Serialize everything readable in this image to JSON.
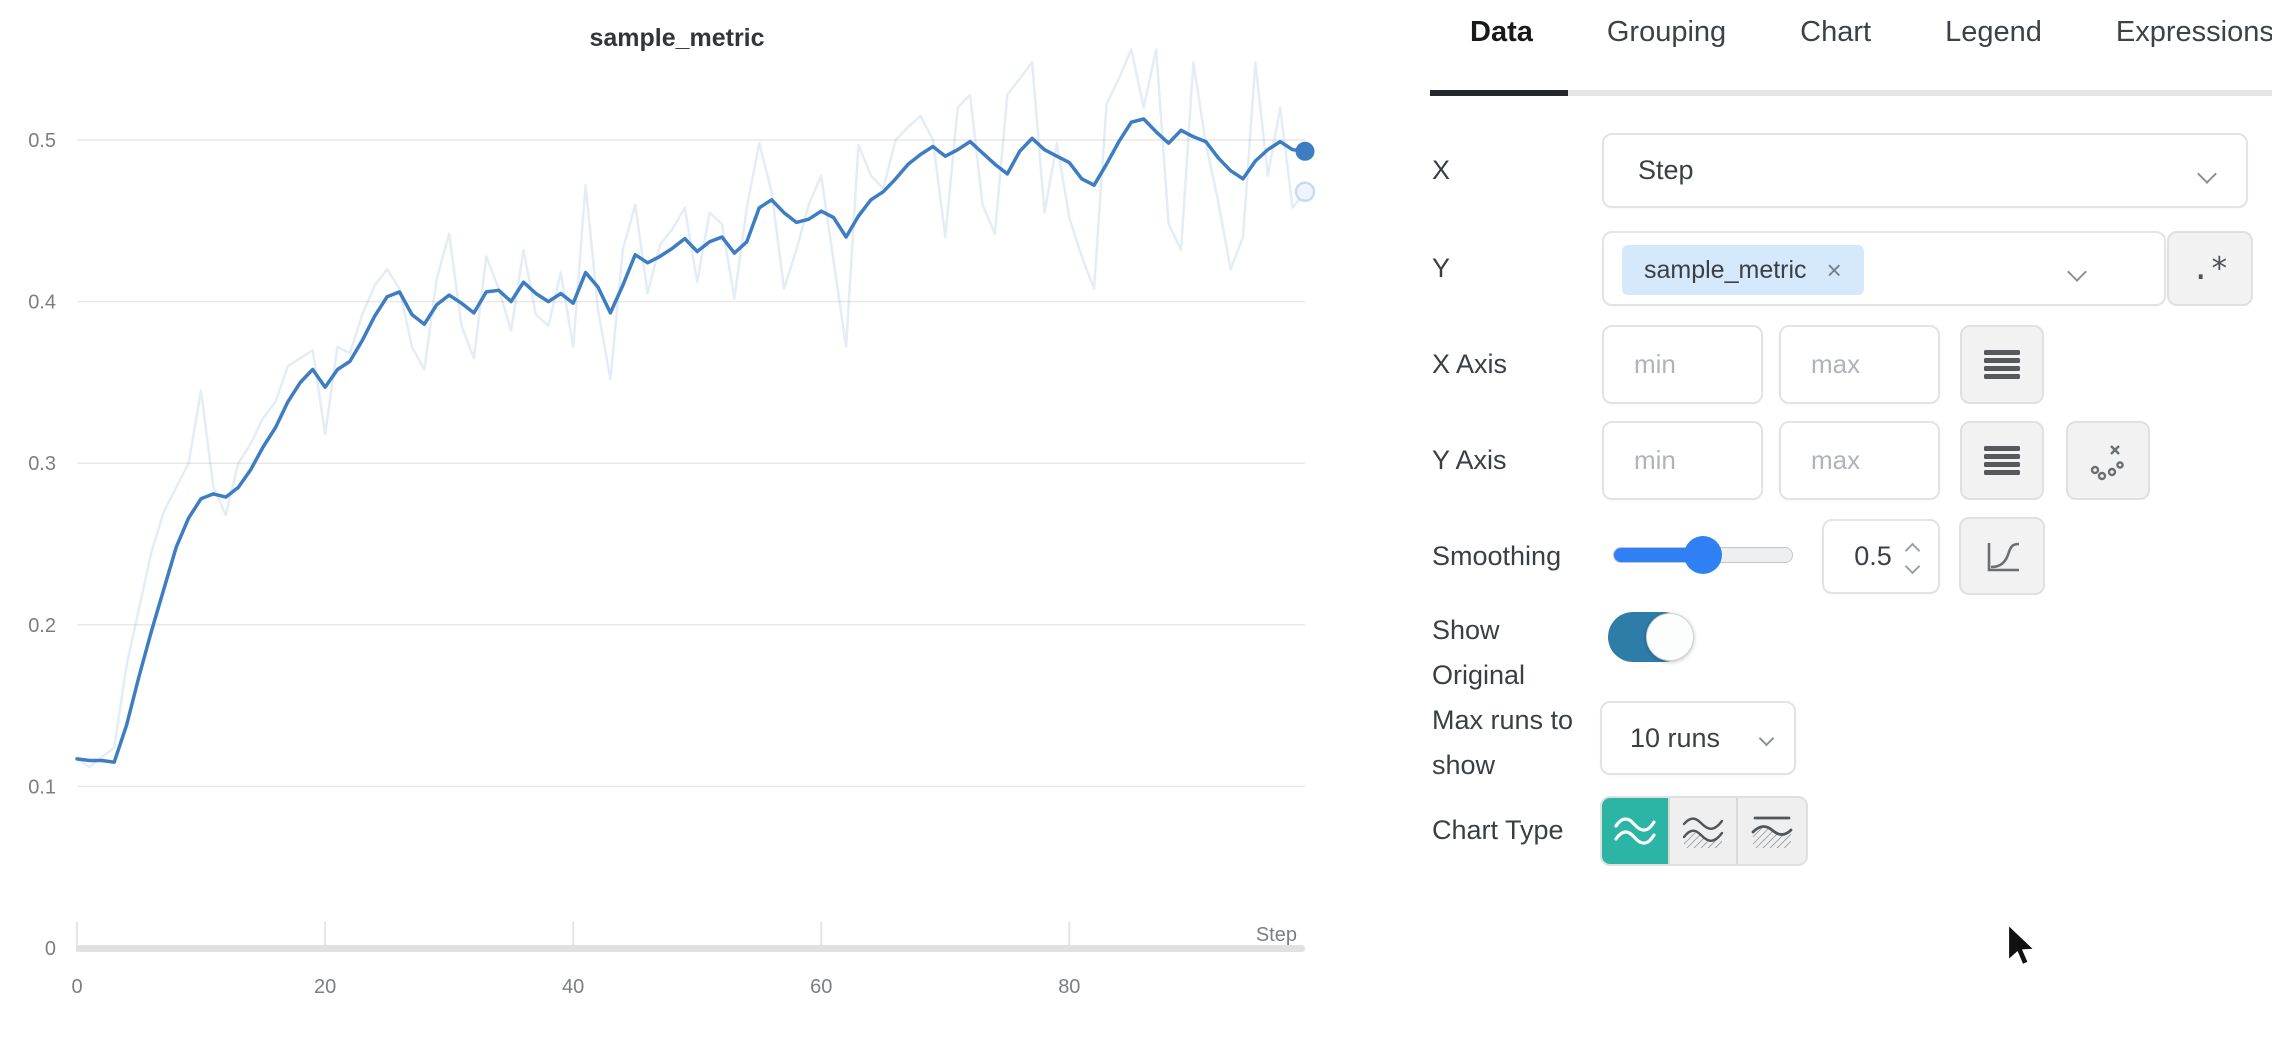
{
  "chart_data": {
    "type": "line",
    "title": "sample_metric",
    "xlabel": "Step",
    "ylabel": "",
    "xlim": [
      0,
      99
    ],
    "ylim": [
      0,
      0.55
    ],
    "grid": true,
    "legend": "none",
    "line_color": "#3e7dc2",
    "x_ticks": [
      {
        "value": 0,
        "label": "0"
      },
      {
        "value": 20,
        "label": "20"
      },
      {
        "value": 40,
        "label": "40"
      },
      {
        "value": 60,
        "label": "60"
      },
      {
        "value": 80,
        "label": "80"
      }
    ],
    "y_ticks": [
      {
        "value": 0,
        "label": "0"
      },
      {
        "value": 0.1,
        "label": "0.1"
      },
      {
        "value": 0.2,
        "label": "0.2"
      },
      {
        "value": 0.3,
        "label": "0.3"
      },
      {
        "value": 0.4,
        "label": "0.4"
      },
      {
        "value": 0.5,
        "label": "0.5"
      }
    ],
    "x_start": 0,
    "x_step": 1,
    "series": [
      {
        "name": "sample_metric",
        "variant": "original",
        "values": [
          0.117,
          0.112,
          0.118,
          0.124,
          0.175,
          0.21,
          0.245,
          0.27,
          0.285,
          0.3,
          0.345,
          0.285,
          0.268,
          0.3,
          0.312,
          0.328,
          0.338,
          0.36,
          0.365,
          0.37,
          0.318,
          0.372,
          0.368,
          0.392,
          0.41,
          0.42,
          0.408,
          0.372,
          0.358,
          0.414,
          0.442,
          0.385,
          0.365,
          0.428,
          0.408,
          0.382,
          0.432,
          0.392,
          0.385,
          0.418,
          0.372,
          0.472,
          0.395,
          0.352,
          0.432,
          0.46,
          0.405,
          0.435,
          0.445,
          0.458,
          0.412,
          0.455,
          0.448,
          0.402,
          0.458,
          0.498,
          0.468,
          0.408,
          0.432,
          0.46,
          0.478,
          0.425,
          0.372,
          0.497,
          0.478,
          0.47,
          0.5,
          0.508,
          0.515,
          0.5,
          0.44,
          0.52,
          0.528,
          0.46,
          0.442,
          0.528,
          0.538,
          0.548,
          0.455,
          0.498,
          0.452,
          0.428,
          0.408,
          0.522,
          0.538,
          0.556,
          0.52,
          0.556,
          0.448,
          0.432,
          0.548,
          0.498,
          0.462,
          0.42,
          0.44,
          0.548,
          0.478,
          0.52,
          0.458,
          0.468
        ]
      },
      {
        "name": "sample_metric",
        "variant": "smoothed",
        "values": [
          0.117,
          0.116,
          0.116,
          0.115,
          0.138,
          0.168,
          0.196,
          0.222,
          0.248,
          0.266,
          0.278,
          0.281,
          0.279,
          0.285,
          0.296,
          0.31,
          0.322,
          0.338,
          0.35,
          0.358,
          0.347,
          0.358,
          0.363,
          0.376,
          0.391,
          0.403,
          0.406,
          0.392,
          0.386,
          0.398,
          0.404,
          0.399,
          0.393,
          0.406,
          0.407,
          0.4,
          0.412,
          0.405,
          0.4,
          0.405,
          0.399,
          0.418,
          0.409,
          0.393,
          0.41,
          0.429,
          0.424,
          0.428,
          0.433,
          0.439,
          0.431,
          0.437,
          0.44,
          0.43,
          0.437,
          0.458,
          0.463,
          0.455,
          0.449,
          0.451,
          0.456,
          0.452,
          0.44,
          0.453,
          0.463,
          0.468,
          0.476,
          0.485,
          0.491,
          0.496,
          0.49,
          0.494,
          0.499,
          0.492,
          0.485,
          0.479,
          0.493,
          0.501,
          0.494,
          0.49,
          0.486,
          0.476,
          0.472,
          0.485,
          0.499,
          0.511,
          0.513,
          0.505,
          0.498,
          0.506,
          0.502,
          0.499,
          0.489,
          0.481,
          0.476,
          0.487,
          0.494,
          0.499,
          0.494,
          0.493
        ]
      }
    ]
  },
  "panel": {
    "tabs": [
      {
        "label": "Data",
        "active": true
      },
      {
        "label": "Grouping",
        "active": false
      },
      {
        "label": "Chart",
        "active": false
      },
      {
        "label": "Legend",
        "active": false
      },
      {
        "label": "Expressions",
        "active": false
      }
    ],
    "x_row": {
      "label": "X",
      "value": "Step"
    },
    "y_row": {
      "label": "Y",
      "selected_metric": "sample_metric",
      "remove_icon": "×",
      "regex_button_label": ".*"
    },
    "x_axis_row": {
      "label": "X Axis",
      "min_placeholder": "min",
      "max_placeholder": "max"
    },
    "y_axis_row": {
      "label": "Y Axis",
      "min_placeholder": "min",
      "max_placeholder": "max"
    },
    "smoothing_row": {
      "label": "Smoothing",
      "value": "0.5"
    },
    "show_original_row": {
      "label": "Show Original",
      "enabled": true
    },
    "max_runs_row": {
      "label": "Max runs to show",
      "value": "10 runs"
    },
    "chart_type_row": {
      "label": "Chart Type",
      "selected": "line"
    },
    "colors": {
      "accent_teal": "#2cb5a5",
      "toggle_on": "#2e7ca8",
      "slider_blue": "#2f80f5",
      "tag_bg": "#d6e9fc",
      "line_blue": "#3e7dc2"
    }
  }
}
